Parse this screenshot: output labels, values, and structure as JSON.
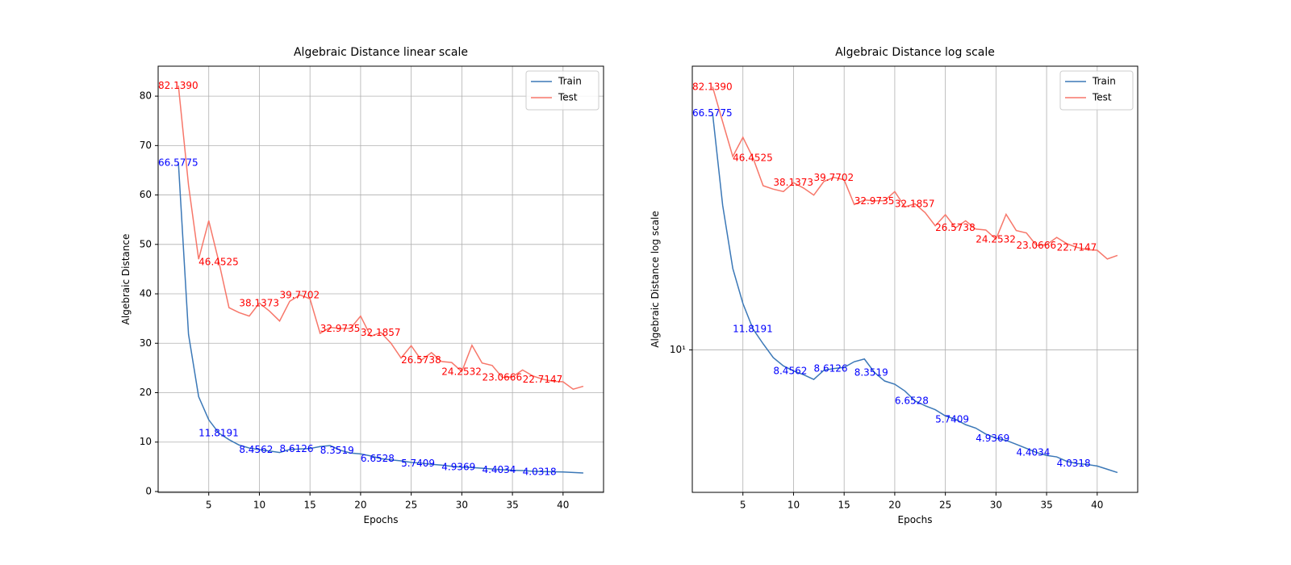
{
  "chart_data": [
    {
      "type": "line",
      "title": "Algebraic Distance linear scale",
      "xlabel": "Epochs",
      "ylabel": "Algebraic Distance",
      "x": [
        2,
        3,
        4,
        5,
        6,
        7,
        8,
        9,
        10,
        11,
        12,
        13,
        14,
        15,
        16,
        17,
        18,
        19,
        20,
        21,
        22,
        23,
        24,
        25,
        26,
        27,
        28,
        29,
        30,
        31,
        32,
        33,
        34,
        35,
        36,
        37,
        38,
        39,
        40,
        41,
        42
      ],
      "series": [
        {
          "name": "Train",
          "color": "#3b78b7",
          "label_color": "blue",
          "values": [
            66.5775,
            31.8,
            19.2,
            14.5,
            11.8191,
            10.5,
            9.4,
            8.8,
            8.4562,
            8.2,
            7.9,
            8.5,
            8.6126,
            8.7,
            9.1,
            9.3,
            8.3519,
            7.8,
            7.6,
            7.2,
            6.6528,
            6.4,
            6.2,
            5.9,
            5.7409,
            5.5,
            5.35,
            5.1,
            4.9369,
            4.85,
            4.7,
            4.55,
            4.4034,
            4.3,
            4.25,
            4.1,
            4.0318,
            4.0,
            3.95,
            3.85,
            3.75
          ],
          "annotations": [
            {
              "x": 0,
              "y": 66.5775,
              "label": "66.5775"
            },
            {
              "x": 4,
              "y": 11.8191,
              "label": "11.8191"
            },
            {
              "x": 8,
              "y": 8.4562,
              "label": "8.4562"
            },
            {
              "x": 12,
              "y": 8.6126,
              "label": "8.6126"
            },
            {
              "x": 16,
              "y": 8.3519,
              "label": "8.3519"
            },
            {
              "x": 20,
              "y": 6.6528,
              "label": "6.6528"
            },
            {
              "x": 24,
              "y": 5.7409,
              "label": "5.7409"
            },
            {
              "x": 28,
              "y": 4.9369,
              "label": "4.9369"
            },
            {
              "x": 32,
              "y": 4.4034,
              "label": "4.4034"
            },
            {
              "x": 36,
              "y": 4.0318,
              "label": "4.0318"
            }
          ]
        },
        {
          "name": "Test",
          "color": "#f7776a",
          "label_color": "red",
          "values": [
            82.139,
            62,
            47,
            54.8,
            46.4525,
            37.2,
            36.2,
            35.5,
            38.1373,
            36.5,
            34.5,
            38.5,
            39.7702,
            39,
            32,
            33.2,
            32.9735,
            33,
            35.5,
            31.4,
            32.1857,
            30,
            27,
            29.5,
            26.5738,
            28.1,
            26.3,
            26.1,
            24.2532,
            29.6,
            26,
            25.5,
            23.0666,
            23.2,
            24.6,
            23.4,
            22.7147,
            22.3,
            22.2,
            20.7,
            21.3
          ],
          "annotations": [
            {
              "x": 0,
              "y": 82.139,
              "label": "82.1390"
            },
            {
              "x": 4,
              "y": 46.4525,
              "label": "46.4525"
            },
            {
              "x": 8,
              "y": 38.1373,
              "label": "38.1373"
            },
            {
              "x": 12,
              "y": 39.7702,
              "label": "39.7702"
            },
            {
              "x": 16,
              "y": 32.9735,
              "label": "32.9735"
            },
            {
              "x": 20,
              "y": 32.1857,
              "label": "32.1857"
            },
            {
              "x": 24,
              "y": 26.5738,
              "label": "26.5738"
            },
            {
              "x": 28,
              "y": 24.2532,
              "label": "24.2532"
            },
            {
              "x": 32,
              "y": 23.0666,
              "label": "23.0666"
            },
            {
              "x": 36,
              "y": 22.7147,
              "label": "22.7147"
            }
          ]
        }
      ],
      "xlim": [
        0,
        44
      ],
      "xticks": [
        5,
        10,
        15,
        20,
        25,
        30,
        35,
        40
      ],
      "ylim": [
        -0.17,
        86.06
      ],
      "yticks": [
        0,
        10,
        20,
        30,
        40,
        50,
        60,
        70,
        80
      ],
      "grid": true,
      "legend": "upper right"
    },
    {
      "type": "line",
      "title": "Algebraic Distance log scale",
      "xlabel": "Epochs",
      "ylabel": "Algebraic Distance log scale",
      "x": [
        2,
        3,
        4,
        5,
        6,
        7,
        8,
        9,
        10,
        11,
        12,
        13,
        14,
        15,
        16,
        17,
        18,
        19,
        20,
        21,
        22,
        23,
        24,
        25,
        26,
        27,
        28,
        29,
        30,
        31,
        32,
        33,
        34,
        35,
        36,
        37,
        38,
        39,
        40,
        41,
        42
      ],
      "series": [
        {
          "name": "Train",
          "color": "#3b78b7",
          "label_color": "blue",
          "values": [
            66.5775,
            31.8,
            19.2,
            14.5,
            11.8191,
            10.5,
            9.4,
            8.8,
            8.4562,
            8.2,
            7.9,
            8.5,
            8.6126,
            8.7,
            9.1,
            9.3,
            8.3519,
            7.8,
            7.6,
            7.2,
            6.6528,
            6.4,
            6.2,
            5.9,
            5.7409,
            5.5,
            5.35,
            5.1,
            4.9369,
            4.85,
            4.7,
            4.55,
            4.4034,
            4.3,
            4.25,
            4.1,
            4.0318,
            4.0,
            3.95,
            3.85,
            3.75
          ],
          "annotations": [
            {
              "x": 0,
              "y": 66.5775,
              "label": "66.5775"
            },
            {
              "x": 4,
              "y": 11.8191,
              "label": "11.8191"
            },
            {
              "x": 8,
              "y": 8.4562,
              "label": "8.4562"
            },
            {
              "x": 12,
              "y": 8.6126,
              "label": "8.6126"
            },
            {
              "x": 16,
              "y": 8.3519,
              "label": "8.3519"
            },
            {
              "x": 20,
              "y": 6.6528,
              "label": "6.6528"
            },
            {
              "x": 24,
              "y": 5.7409,
              "label": "5.7409"
            },
            {
              "x": 28,
              "y": 4.9369,
              "label": "4.9369"
            },
            {
              "x": 32,
              "y": 4.4034,
              "label": "4.4034"
            },
            {
              "x": 36,
              "y": 4.0318,
              "label": "4.0318"
            }
          ]
        },
        {
          "name": "Test",
          "color": "#f7776a",
          "label_color": "red",
          "values": [
            82.139,
            62,
            47,
            54.8,
            46.4525,
            37.2,
            36.2,
            35.5,
            38.1373,
            36.5,
            34.5,
            38.5,
            39.7702,
            39,
            32,
            33.2,
            32.9735,
            33,
            35.5,
            31.4,
            32.1857,
            30,
            27,
            29.5,
            26.5738,
            28.1,
            26.3,
            26.1,
            24.2532,
            29.6,
            26,
            25.5,
            23.0666,
            23.2,
            24.6,
            23.4,
            22.7147,
            22.3,
            22.2,
            20.7,
            21.3
          ],
          "annotations": [
            {
              "x": 0,
              "y": 82.139,
              "label": "82.1390"
            },
            {
              "x": 4,
              "y": 46.4525,
              "label": "46.4525"
            },
            {
              "x": 8,
              "y": 38.1373,
              "label": "38.1373"
            },
            {
              "x": 12,
              "y": 39.7702,
              "label": "39.7702"
            },
            {
              "x": 16,
              "y": 32.9735,
              "label": "32.9735"
            },
            {
              "x": 20,
              "y": 32.1857,
              "label": "32.1857"
            },
            {
              "x": 24,
              "y": 26.5738,
              "label": "26.5738"
            },
            {
              "x": 28,
              "y": 24.2532,
              "label": "24.2532"
            },
            {
              "x": 32,
              "y": 23.0666,
              "label": "23.0666"
            },
            {
              "x": 36,
              "y": 22.7147,
              "label": "22.7147"
            }
          ]
        }
      ],
      "xlim": [
        0,
        44
      ],
      "xticks": [
        5,
        10,
        15,
        20,
        25,
        30,
        35,
        40
      ],
      "ylim": [
        3.2,
        96.8
      ],
      "yticks": [
        {
          "value": 10,
          "label": "10¹"
        }
      ],
      "yscale": "log",
      "grid": true,
      "legend": "upper right"
    }
  ]
}
